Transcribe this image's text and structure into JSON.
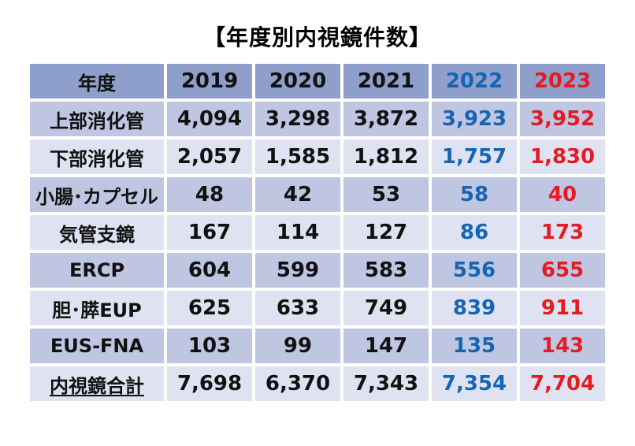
{
  "title": "【年度別内視鏡件数】",
  "header": [
    "年度",
    "2019",
    "2020",
    "2021",
    "2022",
    "2023"
  ],
  "rows": [
    {
      "label": "上部消化管",
      "values": [
        "4,094",
        "3,298",
        "3,872",
        "3,923",
        "3,952"
      ]
    },
    {
      "label": "下部消化管",
      "values": [
        "2,057",
        "1,585",
        "1,812",
        "1,757",
        "1,830"
      ]
    },
    {
      "label": "小腸･カプセル",
      "values": [
        "48",
        "42",
        "53",
        "58",
        "40"
      ]
    },
    {
      "label": "気管支鏡",
      "values": [
        "167",
        "114",
        "127",
        "86",
        "173"
      ]
    },
    {
      "label": "ERCP",
      "values": [
        "604",
        "599",
        "583",
        "556",
        "655"
      ]
    },
    {
      "label": "胆･膵EUP",
      "values": [
        "625",
        "633",
        "749",
        "839",
        "911"
      ]
    },
    {
      "label": "EUS-FNA",
      "values": [
        "103",
        "99",
        "147",
        "135",
        "143"
      ]
    },
    {
      "label": "内視鏡合計",
      "values": [
        "7,698",
        "6,370",
        "7,343",
        "7,354",
        "7,704"
      ]
    }
  ],
  "colors": {
    "header_bg": "#8f9fcb",
    "row_dark": "#bfc6e2",
    "row_light": "#dfe3f1",
    "year_2022": "#1565b3",
    "year_2023": "#e41b23"
  }
}
